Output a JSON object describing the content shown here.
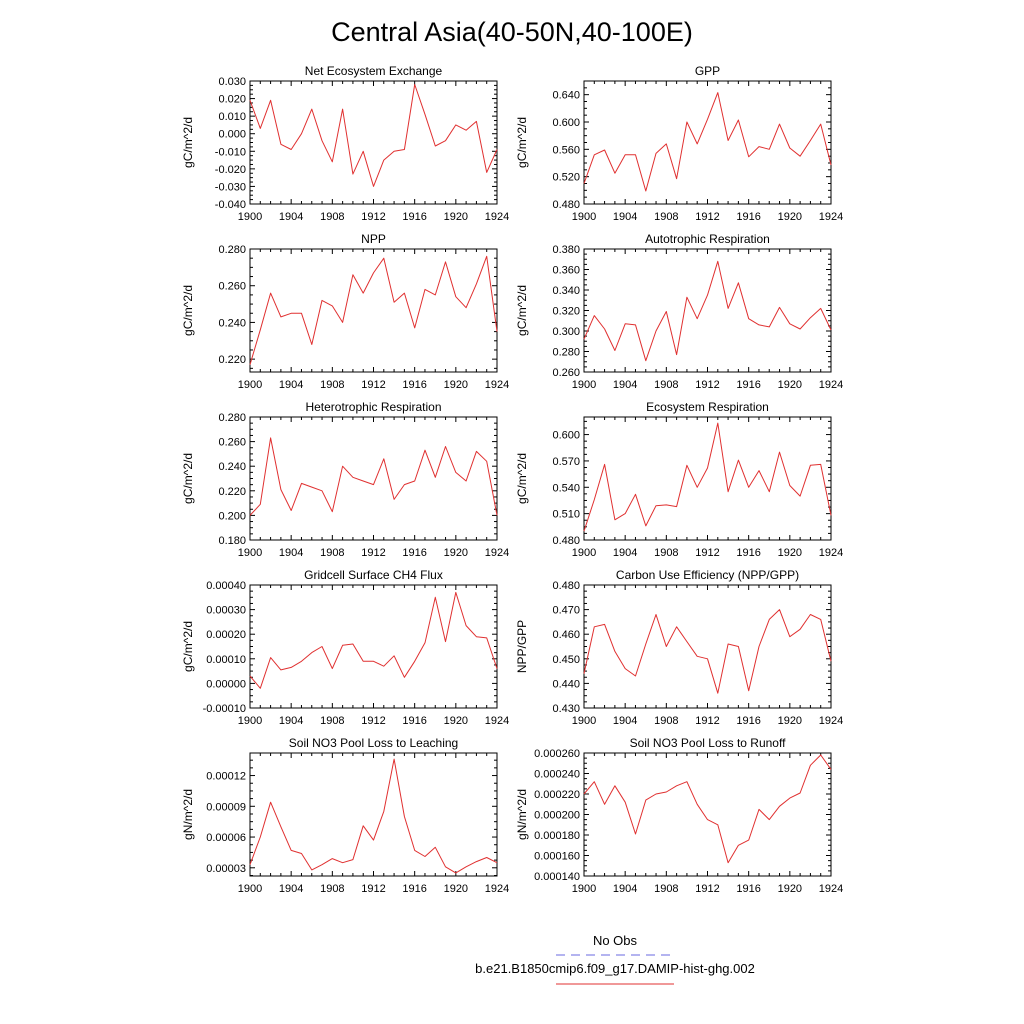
{
  "figure": {
    "title": "Central Asia(40-50N,40-100E)",
    "legend": [
      {
        "label": "No Obs",
        "color": "#6a6ae0",
        "style": "dashed"
      },
      {
        "label": "b.e21.B1850cmip6.f09_g17.DAMIP-hist-ghg.002",
        "color": "#e03030",
        "style": "solid"
      }
    ]
  },
  "chart_data": [
    {
      "type": "line",
      "title": "Net Ecosystem Exchange",
      "xlabel": "",
      "ylabel": "gC/m^2/d",
      "xlim": [
        1900,
        1924
      ],
      "ylim": [
        -0.04,
        0.03
      ],
      "xticks": [
        1900,
        1904,
        1908,
        1912,
        1916,
        1920,
        1924
      ],
      "yticks": [
        -0.04,
        -0.03,
        -0.02,
        -0.01,
        0.0,
        0.01,
        0.02,
        0.03
      ],
      "ytick_labels": [
        "-0.040",
        "-0.030",
        "-0.020",
        "-0.010",
        "0.000",
        "0.010",
        "0.020",
        "0.030"
      ],
      "x": [
        1900,
        1901,
        1902,
        1903,
        1904,
        1905,
        1906,
        1907,
        1908,
        1909,
        1910,
        1911,
        1912,
        1913,
        1914,
        1915,
        1916,
        1917,
        1918,
        1919,
        1920,
        1921,
        1922,
        1923,
        1924
      ],
      "series": [
        {
          "color": "#e03030",
          "values": [
            0.019,
            0.003,
            0.019,
            -0.006,
            -0.009,
            0.0,
            0.014,
            -0.004,
            -0.016,
            0.014,
            -0.023,
            -0.01,
            -0.03,
            -0.015,
            -0.01,
            -0.009,
            0.028,
            0.011,
            -0.007,
            -0.004,
            0.005,
            0.002,
            0.007,
            -0.022,
            -0.009
          ]
        }
      ]
    },
    {
      "type": "line",
      "title": "GPP",
      "xlabel": "",
      "ylabel": "gC/m^2/d",
      "xlim": [
        1900,
        1924
      ],
      "ylim": [
        0.48,
        0.66
      ],
      "xticks": [
        1900,
        1904,
        1908,
        1912,
        1916,
        1920,
        1924
      ],
      "yticks": [
        0.48,
        0.52,
        0.56,
        0.6,
        0.64
      ],
      "ytick_labels": [
        "0.480",
        "0.520",
        "0.560",
        "0.600",
        "0.640"
      ],
      "x": [
        1900,
        1901,
        1902,
        1903,
        1904,
        1905,
        1906,
        1907,
        1908,
        1909,
        1910,
        1911,
        1912,
        1913,
        1914,
        1915,
        1916,
        1917,
        1918,
        1919,
        1920,
        1921,
        1922,
        1923,
        1924
      ],
      "series": [
        {
          "color": "#e03030",
          "values": [
            0.51,
            0.552,
            0.559,
            0.525,
            0.552,
            0.552,
            0.499,
            0.554,
            0.568,
            0.517,
            0.6,
            0.568,
            0.604,
            0.643,
            0.573,
            0.603,
            0.549,
            0.564,
            0.56,
            0.597,
            0.562,
            0.55,
            0.573,
            0.597,
            0.537
          ]
        }
      ]
    },
    {
      "type": "line",
      "title": "NPP",
      "xlabel": "",
      "ylabel": "gC/m^2/d",
      "xlim": [
        1900,
        1924
      ],
      "ylim": [
        0.213,
        0.28
      ],
      "xticks": [
        1900,
        1904,
        1908,
        1912,
        1916,
        1920,
        1924
      ],
      "yticks": [
        0.22,
        0.24,
        0.26,
        0.28
      ],
      "ytick_labels": [
        "0.220",
        "0.240",
        "0.260",
        "0.280"
      ],
      "x": [
        1900,
        1901,
        1902,
        1903,
        1904,
        1905,
        1906,
        1907,
        1908,
        1909,
        1910,
        1911,
        1912,
        1913,
        1914,
        1915,
        1916,
        1917,
        1918,
        1919,
        1920,
        1921,
        1922,
        1923,
        1924
      ],
      "series": [
        {
          "color": "#e03030",
          "values": [
            0.217,
            0.236,
            0.256,
            0.243,
            0.245,
            0.245,
            0.228,
            0.252,
            0.249,
            0.24,
            0.266,
            0.256,
            0.267,
            0.275,
            0.251,
            0.256,
            0.237,
            0.258,
            0.255,
            0.273,
            0.254,
            0.248,
            0.261,
            0.276,
            0.235
          ]
        }
      ]
    },
    {
      "type": "line",
      "title": "Autotrophic Respiration",
      "xlabel": "",
      "ylabel": "gC/m^2/d",
      "xlim": [
        1900,
        1924
      ],
      "ylim": [
        0.26,
        0.38
      ],
      "xticks": [
        1900,
        1904,
        1908,
        1912,
        1916,
        1920,
        1924
      ],
      "yticks": [
        0.26,
        0.28,
        0.3,
        0.32,
        0.34,
        0.36,
        0.38
      ],
      "ytick_labels": [
        "0.260",
        "0.280",
        "0.300",
        "0.320",
        "0.340",
        "0.360",
        "0.380"
      ],
      "x": [
        1900,
        1901,
        1902,
        1903,
        1904,
        1905,
        1906,
        1907,
        1908,
        1909,
        1910,
        1911,
        1912,
        1913,
        1914,
        1915,
        1916,
        1917,
        1918,
        1919,
        1920,
        1921,
        1922,
        1923,
        1924
      ],
      "series": [
        {
          "color": "#e03030",
          "values": [
            0.292,
            0.315,
            0.302,
            0.281,
            0.307,
            0.306,
            0.271,
            0.3,
            0.319,
            0.277,
            0.333,
            0.312,
            0.335,
            0.368,
            0.322,
            0.347,
            0.312,
            0.306,
            0.304,
            0.323,
            0.307,
            0.302,
            0.313,
            0.322,
            0.301
          ]
        }
      ]
    },
    {
      "type": "line",
      "title": "Heterotrophic Respiration",
      "xlabel": "",
      "ylabel": "gC/m^2/d",
      "xlim": [
        1900,
        1924
      ],
      "ylim": [
        0.18,
        0.28
      ],
      "xticks": [
        1900,
        1904,
        1908,
        1912,
        1916,
        1920,
        1924
      ],
      "yticks": [
        0.18,
        0.2,
        0.22,
        0.24,
        0.26,
        0.28
      ],
      "ytick_labels": [
        "0.180",
        "0.200",
        "0.220",
        "0.240",
        "0.260",
        "0.280"
      ],
      "x": [
        1900,
        1901,
        1902,
        1903,
        1904,
        1905,
        1906,
        1907,
        1908,
        1909,
        1910,
        1911,
        1912,
        1913,
        1914,
        1915,
        1916,
        1917,
        1918,
        1919,
        1920,
        1921,
        1922,
        1923,
        1924
      ],
      "series": [
        {
          "color": "#e03030",
          "values": [
            0.2,
            0.209,
            0.263,
            0.221,
            0.204,
            0.226,
            0.223,
            0.22,
            0.203,
            0.24,
            0.231,
            0.228,
            0.225,
            0.246,
            0.213,
            0.225,
            0.228,
            0.253,
            0.231,
            0.256,
            0.235,
            0.228,
            0.252,
            0.244,
            0.2
          ]
        }
      ]
    },
    {
      "type": "line",
      "title": "Ecosystem Respiration",
      "xlabel": "",
      "ylabel": "gC/m^2/d",
      "xlim": [
        1900,
        1924
      ],
      "ylim": [
        0.48,
        0.62
      ],
      "xticks": [
        1900,
        1904,
        1908,
        1912,
        1916,
        1920,
        1924
      ],
      "yticks": [
        0.48,
        0.51,
        0.54,
        0.57,
        0.6
      ],
      "ytick_labels": [
        "0.480",
        "0.510",
        "0.540",
        "0.570",
        "0.600"
      ],
      "x": [
        1900,
        1901,
        1902,
        1903,
        1904,
        1905,
        1906,
        1907,
        1908,
        1909,
        1910,
        1911,
        1912,
        1913,
        1914,
        1915,
        1916,
        1917,
        1918,
        1919,
        1920,
        1921,
        1922,
        1923,
        1924
      ],
      "series": [
        {
          "color": "#e03030",
          "values": [
            0.49,
            0.526,
            0.566,
            0.503,
            0.51,
            0.532,
            0.496,
            0.519,
            0.52,
            0.518,
            0.565,
            0.54,
            0.562,
            0.613,
            0.535,
            0.571,
            0.54,
            0.559,
            0.535,
            0.58,
            0.542,
            0.53,
            0.565,
            0.566,
            0.508
          ]
        }
      ]
    },
    {
      "type": "line",
      "title": "Gridcell Surface CH4 Flux",
      "xlabel": "",
      "ylabel": "gC/m^2/d",
      "xlim": [
        1900,
        1924
      ],
      "ylim": [
        -0.0001,
        0.0004
      ],
      "xticks": [
        1900,
        1904,
        1908,
        1912,
        1916,
        1920,
        1924
      ],
      "yticks": [
        -0.0001,
        0.0,
        0.0001,
        0.0002,
        0.0003,
        0.0004
      ],
      "ytick_labels": [
        "-0.00010",
        "0.00000",
        "0.00010",
        "0.00020",
        "0.00030",
        "0.00040"
      ],
      "x": [
        1900,
        1901,
        1902,
        1903,
        1904,
        1905,
        1906,
        1907,
        1908,
        1909,
        1910,
        1911,
        1912,
        1913,
        1914,
        1915,
        1916,
        1917,
        1918,
        1919,
        1920,
        1921,
        1922,
        1923,
        1924
      ],
      "series": [
        {
          "color": "#e03030",
          "values": [
            3e-05,
            -2e-05,
            0.000105,
            5.5e-05,
            6.5e-05,
            9e-05,
            0.000125,
            0.00015,
            6e-05,
            0.000155,
            0.00016,
            9e-05,
            9e-05,
            7e-05,
            0.000112,
            2.5e-05,
            9e-05,
            0.000165,
            0.00035,
            0.00017,
            0.00037,
            0.000235,
            0.00019,
            0.000185,
            6e-05
          ]
        }
      ]
    },
    {
      "type": "line",
      "title": "Carbon Use Efficiency (NPP/GPP)",
      "xlabel": "",
      "ylabel": "NPP/GPP",
      "xlim": [
        1900,
        1924
      ],
      "ylim": [
        0.43,
        0.48
      ],
      "xticks": [
        1900,
        1904,
        1908,
        1912,
        1916,
        1920,
        1924
      ],
      "yticks": [
        0.43,
        0.44,
        0.45,
        0.46,
        0.47,
        0.48
      ],
      "ytick_labels": [
        "0.430",
        "0.440",
        "0.450",
        "0.460",
        "0.470",
        "0.480"
      ],
      "x": [
        1900,
        1901,
        1902,
        1903,
        1904,
        1905,
        1906,
        1907,
        1908,
        1909,
        1910,
        1911,
        1912,
        1913,
        1914,
        1915,
        1916,
        1917,
        1918,
        1919,
        1920,
        1921,
        1922,
        1923,
        1924
      ],
      "series": [
        {
          "color": "#e03030",
          "values": [
            0.444,
            0.463,
            0.464,
            0.453,
            0.446,
            0.443,
            0.456,
            0.468,
            0.455,
            0.463,
            0.457,
            0.451,
            0.45,
            0.436,
            0.456,
            0.455,
            0.437,
            0.455,
            0.466,
            0.47,
            0.459,
            0.462,
            0.468,
            0.466,
            0.449
          ]
        }
      ]
    },
    {
      "type": "line",
      "title": "Soil NO3 Pool Loss to Leaching",
      "xlabel": "",
      "ylabel": "gN/m^2/d",
      "xlim": [
        1900,
        1924
      ],
      "ylim": [
        2.2e-05,
        0.000142
      ],
      "xticks": [
        1900,
        1904,
        1908,
        1912,
        1916,
        1920,
        1924
      ],
      "yticks": [
        3e-05,
        6e-05,
        9e-05,
        0.00012
      ],
      "ytick_labels": [
        "0.00003",
        "0.00006",
        "0.00009",
        "0.00012"
      ],
      "x": [
        1900,
        1901,
        1902,
        1903,
        1904,
        1905,
        1906,
        1907,
        1908,
        1909,
        1910,
        1911,
        1912,
        1913,
        1914,
        1915,
        1916,
        1917,
        1918,
        1919,
        1920,
        1921,
        1922,
        1923,
        1924
      ],
      "series": [
        {
          "color": "#e03030",
          "values": [
            3.3e-05,
            6e-05,
            9.4e-05,
            7e-05,
            4.7e-05,
            4.4e-05,
            2.8e-05,
            3.3e-05,
            3.9e-05,
            3.5e-05,
            3.8e-05,
            7.1e-05,
            5.7e-05,
            8.5e-05,
            0.000136,
            8e-05,
            4.7e-05,
            4.1e-05,
            5e-05,
            3.1e-05,
            2.5e-05,
            3.1e-05,
            3.6e-05,
            4e-05,
            3.5e-05
          ]
        }
      ]
    },
    {
      "type": "line",
      "title": "Soil NO3 Pool Loss to Runoff",
      "xlabel": "",
      "ylabel": "gN/m^2/d",
      "xlim": [
        1900,
        1924
      ],
      "ylim": [
        0.00014,
        0.00026
      ],
      "xticks": [
        1900,
        1904,
        1908,
        1912,
        1916,
        1920,
        1924
      ],
      "yticks": [
        0.00014,
        0.00016,
        0.00018,
        0.0002,
        0.00022,
        0.00024,
        0.00026
      ],
      "ytick_labels": [
        "0.000140",
        "0.000160",
        "0.000180",
        "0.000200",
        "0.000220",
        "0.000240",
        "0.000260"
      ],
      "x": [
        1900,
        1901,
        1902,
        1903,
        1904,
        1905,
        1906,
        1907,
        1908,
        1909,
        1910,
        1911,
        1912,
        1913,
        1914,
        1915,
        1916,
        1917,
        1918,
        1919,
        1920,
        1921,
        1922,
        1923,
        1924
      ],
      "series": [
        {
          "color": "#e03030",
          "values": [
            0.00022,
            0.000232,
            0.00021,
            0.000228,
            0.000212,
            0.000181,
            0.000214,
            0.00022,
            0.000222,
            0.000228,
            0.000232,
            0.00021,
            0.000195,
            0.00019,
            0.000153,
            0.00017,
            0.000175,
            0.000205,
            0.000195,
            0.000208,
            0.000216,
            0.000221,
            0.000248,
            0.000258,
            0.000244
          ]
        }
      ]
    }
  ]
}
